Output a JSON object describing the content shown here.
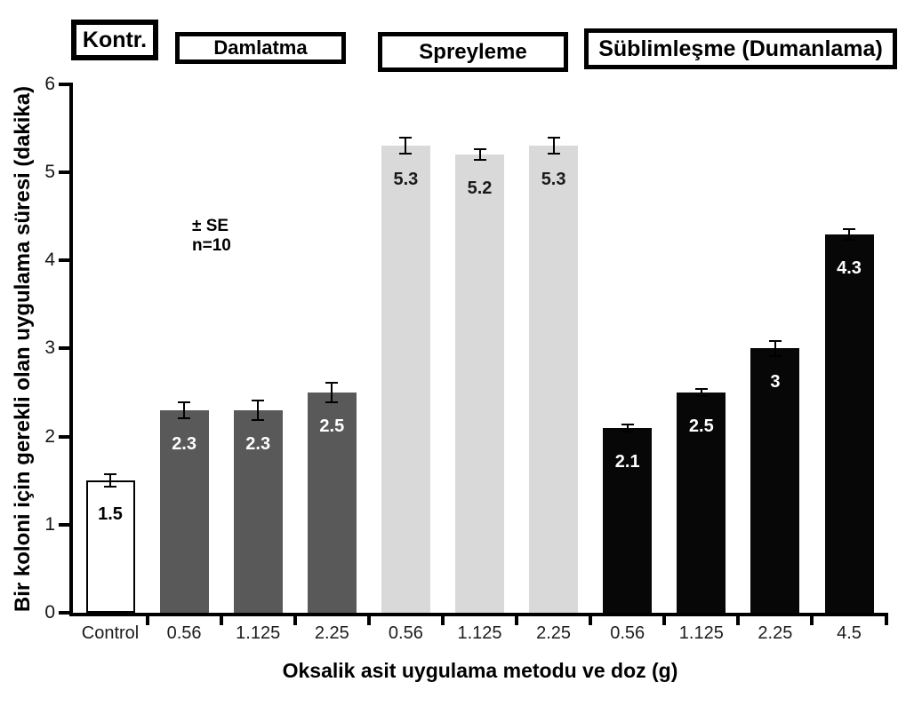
{
  "legend": [
    {
      "label": "Kontr.",
      "group": "control"
    },
    {
      "label": "Damlatma",
      "group": "damlatma"
    },
    {
      "label": "Spreyleme",
      "group": "spreyleme"
    },
    {
      "label": "Süblimleşme (Dumanlama)",
      "group": "sublimlesme"
    }
  ],
  "annotation": {
    "line1": "± SE",
    "line2": "n=10"
  },
  "chart_data": {
    "type": "bar",
    "title": "",
    "xlabel": "Oksalik asit uygulama metodu ve doz  (g)",
    "ylabel": "Bir koloni için gerekli olan uygulama süresi (dakika)",
    "ylim": [
      0,
      6
    ],
    "yticks": [
      0,
      1,
      2,
      3,
      4,
      5,
      6
    ],
    "grid": false,
    "legend_position": "top",
    "categories": [
      "Control",
      "0.56",
      "1.125",
      "2.25",
      "0.56",
      "1.125",
      "2.25",
      "0.56",
      "1.125",
      "2.25",
      "4.5"
    ],
    "values": [
      1.5,
      2.3,
      2.3,
      2.5,
      5.3,
      5.2,
      5.3,
      2.1,
      2.5,
      3,
      4.3
    ],
    "value_labels": [
      "1.5",
      "2.3",
      "2.3",
      "2.5",
      "5.3",
      "5.2",
      "5.3",
      "2.1",
      "2.5",
      "3",
      "4.3"
    ],
    "errors": [
      0.08,
      0.1,
      0.12,
      0.12,
      0.1,
      0.07,
      0.1,
      0.05,
      0.05,
      0.1,
      0.07
    ],
    "bar_groups": [
      "control",
      "damlatma",
      "damlatma",
      "damlatma",
      "spreyleme",
      "spreyleme",
      "spreyleme",
      "sublimlesme",
      "sublimlesme",
      "sublimlesme",
      "sublimlesme"
    ],
    "group_styles": {
      "control": {
        "fill": "#ffffff",
        "border": "#000000",
        "label_color": "#000000"
      },
      "damlatma": {
        "fill": "#595959",
        "border": "",
        "label_color": "#ffffff"
      },
      "spreyleme": {
        "fill": "#d9d9d9",
        "border": "",
        "label_color": "#1a1a1a"
      },
      "sublimlesme": {
        "fill": "#070707",
        "border": "",
        "label_color": "#ffffff"
      }
    },
    "error_note": "± SE n=10"
  }
}
